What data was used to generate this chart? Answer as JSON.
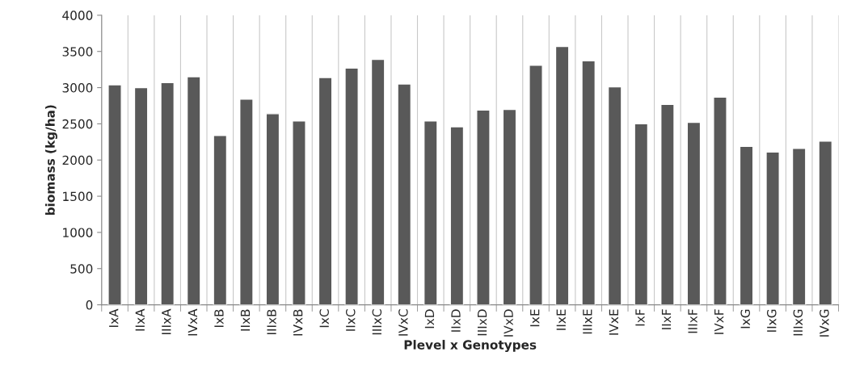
{
  "chart_data": {
    "type": "bar",
    "categories": [
      "IxA",
      "IIxA",
      "IIIxA",
      "IVxA",
      "IxB",
      "IIxB",
      "IIIxB",
      "IVxB",
      "IxC",
      "IIxC",
      "IIIxC",
      "IVxC",
      "IxD",
      "IIxD",
      "IIIxD",
      "IVxD",
      "IxE",
      "IIxE",
      "IIIxE",
      "IVxE",
      "IxF",
      "IIxF",
      "IIIxF",
      "IVxF",
      "IxG",
      "IIxG",
      "IIIxG",
      "IVxG"
    ],
    "values": [
      3040,
      3000,
      3070,
      3150,
      2340,
      2840,
      2640,
      2540,
      3140,
      3270,
      3390,
      3050,
      2540,
      2460,
      2690,
      2700,
      3310,
      3570,
      3370,
      3010,
      2500,
      2770,
      2520,
      2870,
      2190,
      2110,
      2160,
      2260
    ],
    "color": "#595959",
    "xlabel": "Plevel x Genotypes",
    "ylabel": "biomass (kg/ha)",
    "ylim": [
      0,
      4000
    ],
    "yticks": [
      0,
      500,
      1000,
      1500,
      2000,
      2500,
      3000,
      3500,
      4000
    ],
    "grid": "x"
  }
}
